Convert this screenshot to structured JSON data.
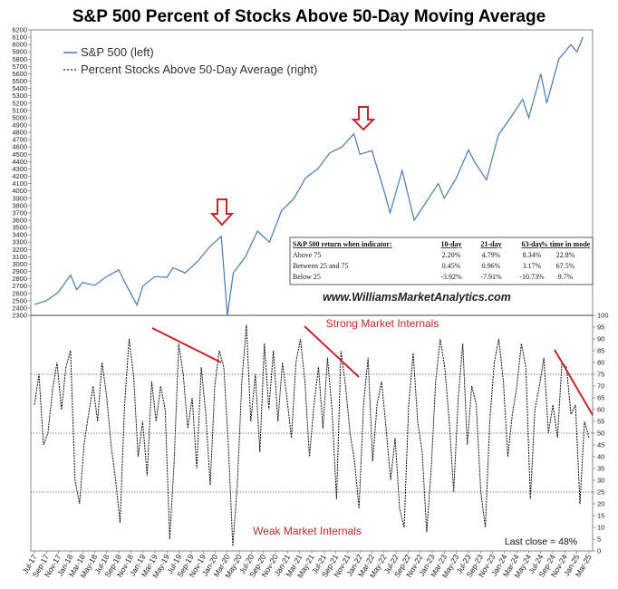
{
  "chart_data": {
    "title": "S&P 500 Percent of Stocks Above 50-Day Moving Average",
    "legend": {
      "sp500": "S&P 500 (left)",
      "pct": "Percent Stocks Above 50-Day Average (right)"
    },
    "upper_axis": {
      "ylim": [
        2300,
        6200
      ],
      "ticks": [
        2300,
        2400,
        2500,
        2600,
        2700,
        2800,
        2900,
        3000,
        3100,
        3200,
        3300,
        3400,
        3500,
        3600,
        3700,
        3800,
        3900,
        4000,
        4100,
        4200,
        4300,
        4400,
        4500,
        4600,
        4700,
        4800,
        4900,
        5000,
        5100,
        5200,
        5300,
        5400,
        5500,
        5600,
        5700,
        5800,
        5900,
        6000,
        6100,
        6200
      ]
    },
    "lower_axis": {
      "ylim": [
        0,
        100
      ],
      "ticks": [
        0,
        5,
        10,
        15,
        20,
        25,
        30,
        35,
        40,
        45,
        50,
        55,
        60,
        65,
        70,
        75,
        80,
        85,
        90,
        95,
        100
      ]
    },
    "x_categories": [
      "Jul-17",
      "Sep-17",
      "Nov-17",
      "Jan-18",
      "Mar-18",
      "May-18",
      "Jul-18",
      "Sep-18",
      "Nov-18",
      "Jan-19",
      "Mar-19",
      "May-19",
      "Jul-19",
      "Sep-19",
      "Nov-19",
      "Jan-20",
      "Mar-20",
      "May-20",
      "Jul-20",
      "Sep-20",
      "Nov-20",
      "Jan-21",
      "Mar-21",
      "May-21",
      "Jul-21",
      "Sep-21",
      "Nov-21",
      "Jan-22",
      "Mar-22",
      "May-22",
      "Jul-22",
      "Sep-22",
      "Nov-22",
      "Jan-23",
      "Mar-23",
      "May-23",
      "Jul-23",
      "Sep-23",
      "Nov-23",
      "Jan-24",
      "Mar-24",
      "May-24",
      "Jul-24",
      "Sep-24",
      "Nov-24",
      "Jan-25",
      "Mar-25"
    ],
    "sp500_series": {
      "name": "S&P 500 (left)",
      "months": [
        "2017-07",
        "2017-09",
        "2017-11",
        "2018-01",
        "2018-02",
        "2018-03",
        "2018-05",
        "2018-07",
        "2018-09",
        "2018-10",
        "2018-12",
        "2019-01",
        "2019-03",
        "2019-05",
        "2019-06",
        "2019-08",
        "2019-10",
        "2019-12",
        "2020-02",
        "2020-03",
        "2020-04",
        "2020-06",
        "2020-08",
        "2020-10",
        "2020-12",
        "2021-02",
        "2021-04",
        "2021-06",
        "2021-08",
        "2021-10",
        "2021-12",
        "2022-01",
        "2022-03",
        "2022-05",
        "2022-06",
        "2022-08",
        "2022-10",
        "2022-12",
        "2023-02",
        "2023-03",
        "2023-05",
        "2023-07",
        "2023-08",
        "2023-10",
        "2023-12",
        "2024-02",
        "2024-04",
        "2024-05",
        "2024-07",
        "2024-08",
        "2024-10",
        "2024-12",
        "2025-01",
        "2025-02"
      ],
      "values": [
        2450,
        2500,
        2620,
        2850,
        2650,
        2750,
        2710,
        2830,
        2920,
        2750,
        2440,
        2700,
        2830,
        2820,
        2950,
        2880,
        3030,
        3230,
        3380,
        2300,
        2880,
        3100,
        3450,
        3300,
        3730,
        3890,
        4180,
        4300,
        4520,
        4600,
        4780,
        4500,
        4550,
        4000,
        3700,
        4280,
        3600,
        3850,
        4100,
        3900,
        4180,
        4560,
        4400,
        4150,
        4770,
        5000,
        5250,
        5000,
        5600,
        5200,
        5800,
        6000,
        5900,
        6100
      ]
    },
    "pct_series": {
      "name": "Percent Stocks Above 50-Day Average (right)",
      "values": [
        62,
        75,
        45,
        50,
        68,
        80,
        60,
        78,
        85,
        30,
        20,
        45,
        58,
        70,
        55,
        80,
        66,
        45,
        30,
        12,
        62,
        90,
        74,
        40,
        55,
        32,
        72,
        55,
        70,
        60,
        5,
        38,
        88,
        75,
        52,
        65,
        35,
        78,
        58,
        28,
        70,
        85,
        78,
        45,
        2,
        28,
        72,
        96,
        55,
        75,
        42,
        88,
        60,
        85,
        55,
        80,
        65,
        48,
        80,
        90,
        72,
        40,
        62,
        78,
        52,
        82,
        60,
        22,
        85,
        70,
        50,
        38,
        18,
        62,
        82,
        38,
        62,
        72,
        52,
        30,
        48,
        18,
        10,
        62,
        84,
        55,
        42,
        8,
        35,
        72,
        90,
        78,
        55,
        25,
        65,
        88,
        45,
        70,
        62,
        25,
        10,
        55,
        80,
        90,
        72,
        40,
        58,
        70,
        88,
        78,
        22,
        60,
        70,
        82,
        50,
        62,
        48,
        80,
        78,
        58,
        62,
        20,
        55,
        48
      ]
    },
    "threshold_lines": [
      75,
      50,
      25
    ],
    "return_table": {
      "headers": [
        "S&P 500 return when indicator:",
        "10-day",
        "21-day",
        "63-day",
        "% time in mode"
      ],
      "rows": [
        {
          "label": "Above 75",
          "d10": "2.20%",
          "d21": "4.79%",
          "d63": "8.34%",
          "time": "22.8%"
        },
        {
          "label": "Between 25 and 75",
          "d10": "0.45%",
          "d21": "0.96%",
          "d63": "3.17%",
          "time": "67.5%"
        },
        {
          "label": "Below 25",
          "d10": "-3.92%",
          "d21": "-7.91%",
          "d63": "-10.73%",
          "time": "9.7%"
        }
      ]
    },
    "watermark": "www.WilliamsMarketAnalytics.com",
    "annotations": {
      "strong": "Strong Market Internals",
      "weak": "Weak Market Internals",
      "last_close": "Last close = 48%"
    },
    "colors": {
      "sp500_line": "#4a78ad",
      "pct_line": "#111111",
      "arrow": "#c0282d",
      "trend_line": "#c0282d"
    }
  }
}
